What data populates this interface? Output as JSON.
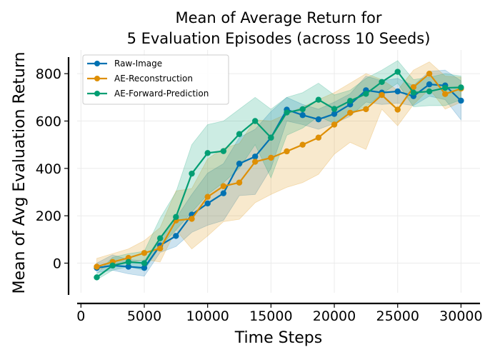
{
  "chart_data": {
    "type": "line",
    "title_lines": [
      "Mean of Average Return for",
      "5 Evaluation Episodes (across 10 Seeds)"
    ],
    "xlabel": "Time Steps",
    "ylabel": "Mean of Avg Evaluation Return",
    "xlim": [
      -300,
      31500
    ],
    "ylim": [
      -125,
      900
    ],
    "xticks": [
      0,
      5000,
      10000,
      15000,
      20000,
      25000,
      30000
    ],
    "yticks": [
      0,
      200,
      400,
      600,
      800
    ],
    "grid": true,
    "legend_position": "top-left",
    "x": [
      1250,
      2500,
      3750,
      5000,
      6250,
      7500,
      8750,
      10000,
      11250,
      12500,
      13750,
      15000,
      16250,
      17500,
      18750,
      20000,
      21250,
      22500,
      23750,
      25000,
      26250,
      27500,
      28750,
      30000
    ],
    "series": [
      {
        "name": "Raw-Image",
        "color": "#0072b2",
        "values": [
          -20,
          -10,
          -15,
          -20,
          75,
          115,
          205,
          252,
          295,
          420,
          450,
          530,
          648,
          625,
          607,
          630,
          670,
          730,
          720,
          725,
          705,
          755,
          750,
          686
        ],
        "lower": [
          -40,
          -30,
          -45,
          -55,
          45,
          70,
          130,
          160,
          180,
          285,
          290,
          400,
          600,
          585,
          565,
          590,
          620,
          680,
          670,
          675,
          665,
          705,
          690,
          605
        ],
        "upper": [
          0,
          35,
          15,
          10,
          110,
          190,
          290,
          380,
          420,
          530,
          565,
          640,
          700,
          670,
          650,
          680,
          715,
          790,
          770,
          780,
          750,
          810,
          815,
          770
        ]
      },
      {
        "name": "AE-Reconstruction",
        "color": "#de8f05",
        "values": [
          -15,
          5,
          22,
          43,
          62,
          180,
          187,
          280,
          325,
          340,
          428,
          445,
          472,
          500,
          530,
          585,
          635,
          650,
          710,
          648,
          743,
          800,
          714,
          737
        ],
        "lower": [
          -30,
          -10,
          0,
          15,
          5,
          140,
          60,
          115,
          175,
          185,
          255,
          290,
          320,
          340,
          375,
          460,
          510,
          480,
          650,
          580,
          670,
          735,
          650,
          680
        ],
        "upper": [
          20,
          40,
          60,
          95,
          150,
          305,
          315,
          440,
          485,
          505,
          605,
          600,
          630,
          660,
          690,
          720,
          760,
          800,
          775,
          730,
          815,
          850,
          790,
          785
        ]
      },
      {
        "name": "AE-Forward-Prediction",
        "color": "#029e73",
        "values": [
          -60,
          -10,
          5,
          0,
          105,
          195,
          378,
          465,
          473,
          545,
          600,
          530,
          636,
          650,
          690,
          651,
          685,
          715,
          765,
          808,
          720,
          725,
          740,
          742
        ],
        "lower": [
          -70,
          -30,
          -15,
          -30,
          70,
          140,
          215,
          290,
          340,
          400,
          500,
          360,
          540,
          570,
          620,
          590,
          635,
          660,
          715,
          760,
          660,
          665,
          665,
          690
        ],
        "upper": [
          -45,
          25,
          40,
          50,
          190,
          300,
          500,
          585,
          600,
          650,
          700,
          650,
          700,
          720,
          760,
          710,
          730,
          780,
          815,
          855,
          775,
          785,
          800,
          790
        ]
      }
    ]
  }
}
